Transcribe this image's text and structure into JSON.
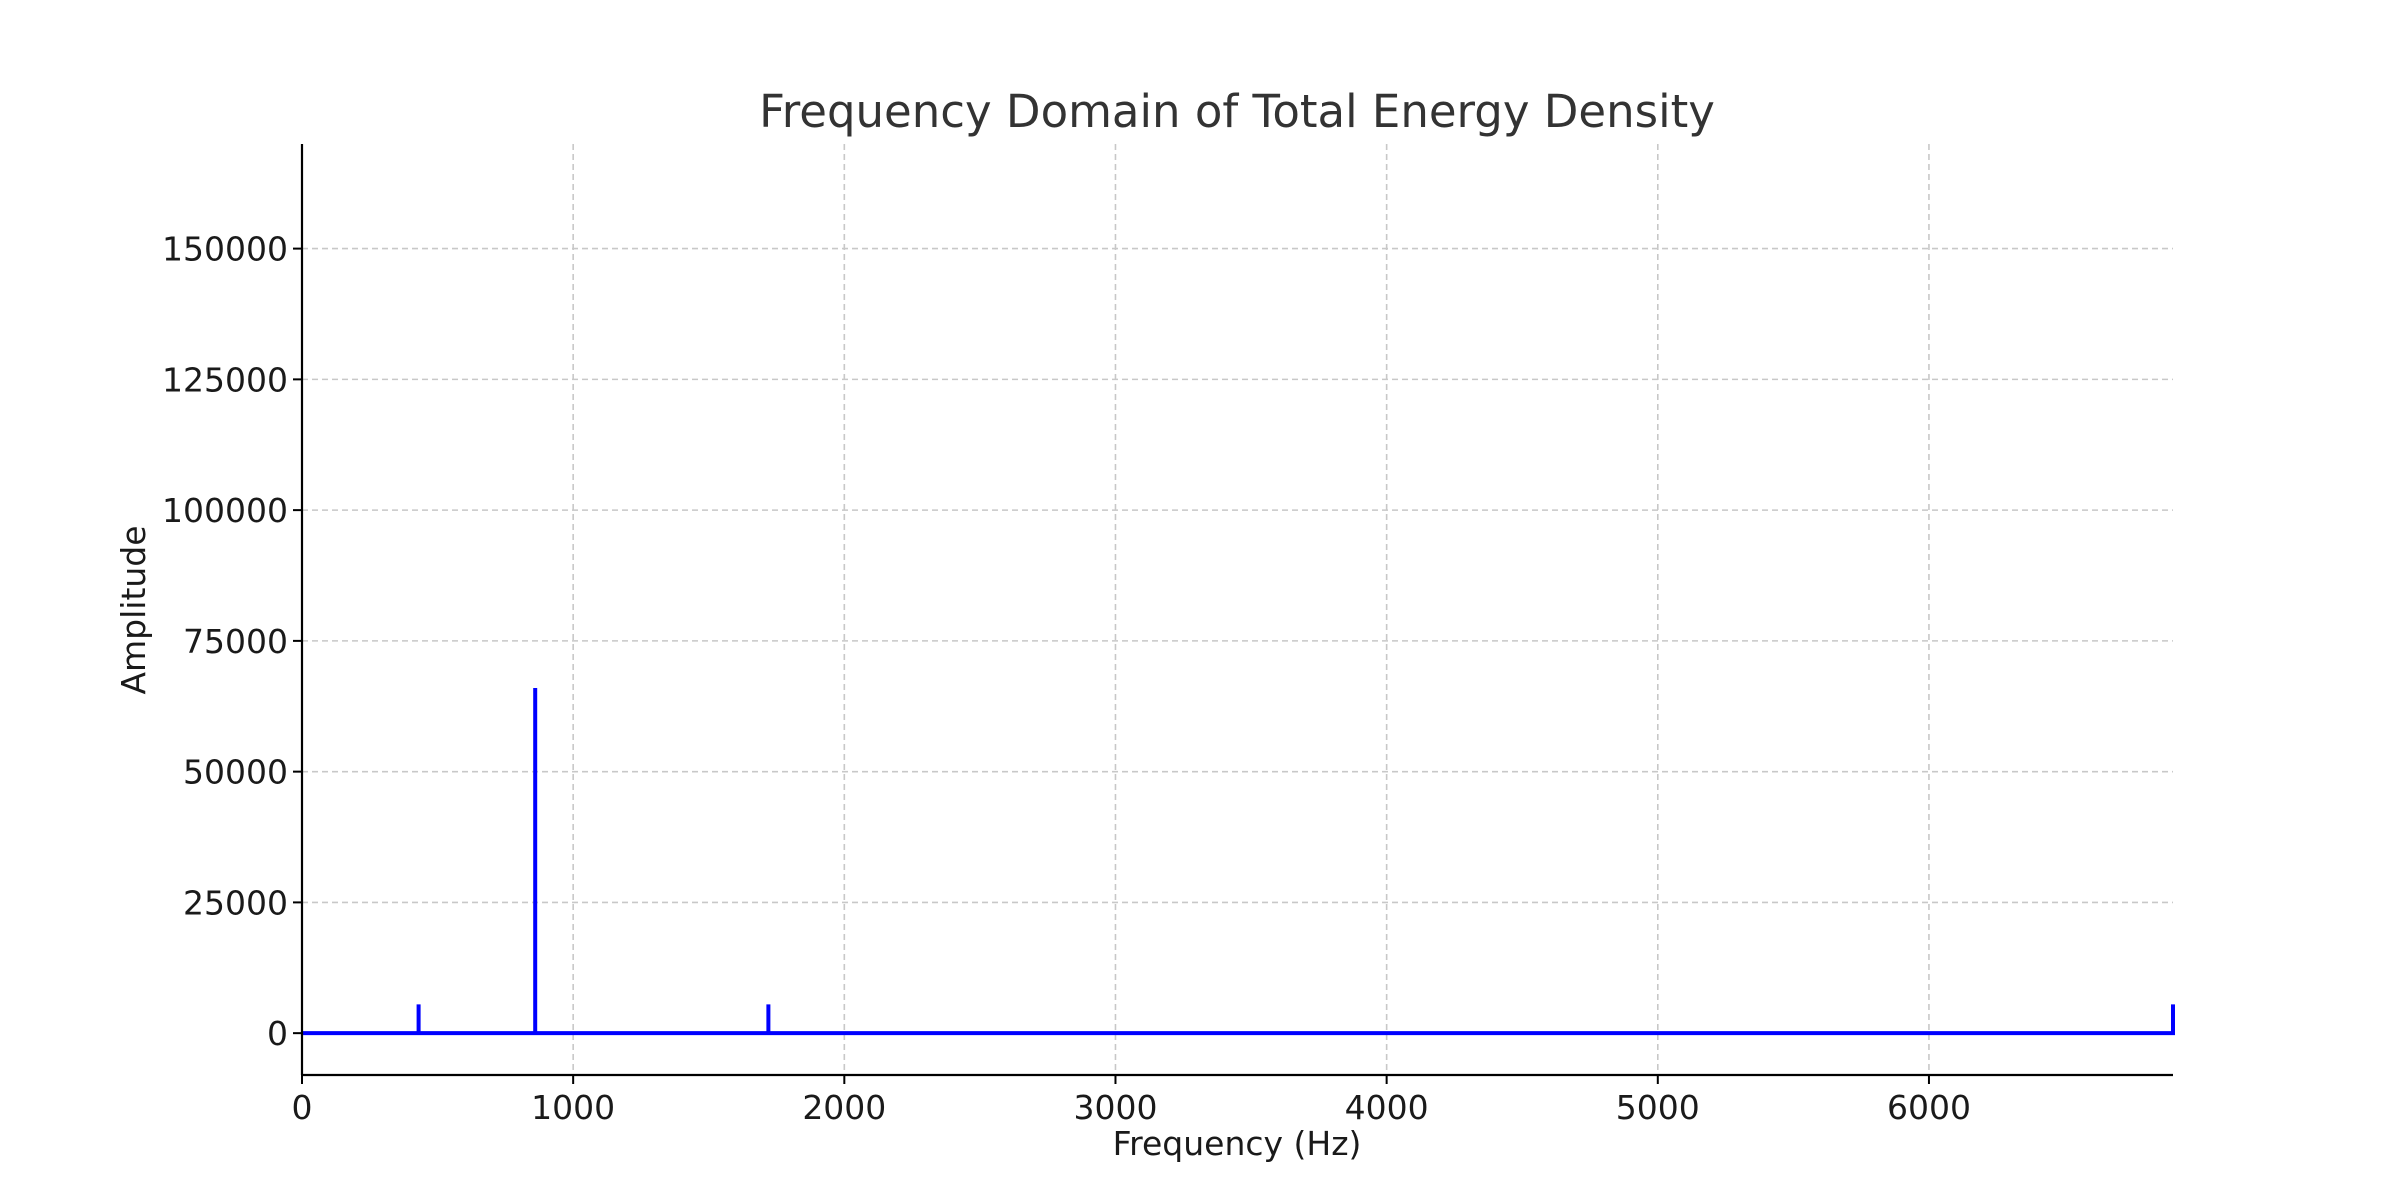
{
  "chart_data": {
    "type": "line",
    "title": "Frequency Domain of Total Energy Density",
    "xlabel": "Frequency (Hz)",
    "ylabel": "Amplitude",
    "xlim": [
      0,
      6900
    ],
    "ylim": [
      -8000,
      170000
    ],
    "xticks": [
      0,
      1000,
      2000,
      3000,
      4000,
      5000,
      6000
    ],
    "xtick_labels": [
      "0",
      "1000",
      "2000",
      "3000",
      "4000",
      "5000",
      "6000"
    ],
    "yticks": [
      0,
      25000,
      50000,
      75000,
      100000,
      125000,
      150000
    ],
    "ytick_labels": [
      "0",
      "25000",
      "50000",
      "75000",
      "100000",
      "125000",
      "150000"
    ],
    "grid": true,
    "series_color": "#0000ff",
    "series": [
      {
        "x": [
          0,
          430,
          430,
          430,
          860,
          860,
          860,
          1720,
          1720,
          1720,
          6900,
          6900
        ],
        "y": [
          0,
          0,
          5500,
          0,
          0,
          66000,
          0,
          0,
          5500,
          0,
          0,
          5500
        ]
      }
    ]
  }
}
